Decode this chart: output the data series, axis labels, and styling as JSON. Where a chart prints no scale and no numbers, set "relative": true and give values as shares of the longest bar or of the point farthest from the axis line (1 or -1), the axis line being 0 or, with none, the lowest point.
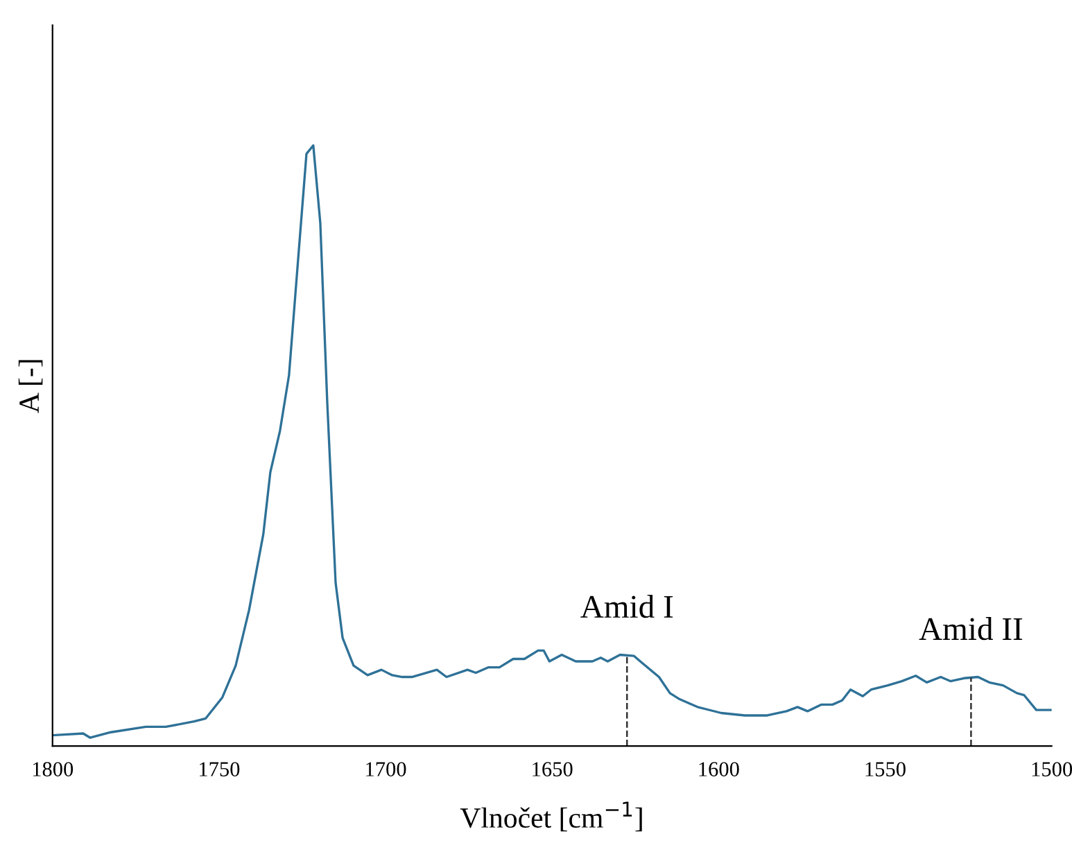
{
  "chart_data": {
    "type": "line",
    "relative": true,
    "xlabel": "Vlnočet [cm$^{−1}$]",
    "ylabel": "A [-]",
    "xlim": [
      1800,
      1500
    ],
    "xticks": [
      1800,
      1750,
      1700,
      1650,
      1600,
      1550,
      1500
    ],
    "tick_labels": "x",
    "grid": false,
    "series": [
      {
        "color": "#2e7197",
        "x": [
          1800,
          1790.8,
          1788.75,
          1782.5,
          1772,
          1766,
          1757.5,
          1754,
          1749,
          1745,
          1741,
          1736.7,
          1734.6,
          1731.7,
          1729,
          1726.7,
          1723.75,
          1721.7,
          1719.6,
          1717.5,
          1715,
          1712.9,
          1709.6,
          1705.4,
          1701.25,
          1698,
          1695,
          1692.1,
          1684.6,
          1681.7,
          1675.4,
          1672.9,
          1669.2,
          1665.8,
          1661.7,
          1658.3,
          1654.2,
          1652.5,
          1650.8,
          1647.1,
          1642.9,
          1637.9,
          1635.4,
          1633.3,
          1629.6,
          1625.4,
          1622.9,
          1617.9,
          1614.6,
          1611.7,
          1606.3,
          1599.2,
          1592.1,
          1585.4,
          1579.6,
          1576.3,
          1573.3,
          1569.2,
          1565.8,
          1562.9,
          1560.4,
          1556.7,
          1554.2,
          1549.2,
          1545,
          1540.8,
          1537.5,
          1533.3,
          1530.4,
          1526.3,
          1522.1,
          1518.75,
          1514.6,
          1510.4,
          1508.3,
          1504.6,
          1500
        ],
        "values": [
          0.018,
          0.021,
          0.014,
          0.023,
          0.032,
          0.032,
          0.041,
          0.046,
          0.081,
          0.134,
          0.226,
          0.353,
          0.456,
          0.525,
          0.617,
          0.779,
          0.986,
          1.0,
          0.871,
          0.571,
          0.272,
          0.18,
          0.134,
          0.118,
          0.127,
          0.118,
          0.115,
          0.115,
          0.127,
          0.115,
          0.127,
          0.122,
          0.131,
          0.131,
          0.145,
          0.145,
          0.159,
          0.159,
          0.141,
          0.152,
          0.141,
          0.141,
          0.147,
          0.141,
          0.152,
          0.15,
          0.138,
          0.115,
          0.088,
          0.078,
          0.065,
          0.055,
          0.051,
          0.051,
          0.058,
          0.065,
          0.058,
          0.069,
          0.069,
          0.076,
          0.094,
          0.083,
          0.094,
          0.101,
          0.108,
          0.117,
          0.106,
          0.115,
          0.108,
          0.113,
          0.115,
          0.106,
          0.101,
          0.088,
          0.085,
          0.06,
          0.06
        ]
      }
    ],
    "annotations": [
      {
        "text": "Amid I",
        "x": 1627.5,
        "y": 0.151
      },
      {
        "text": "Amid II",
        "x": 1524.2,
        "y": 0.114
      }
    ]
  }
}
